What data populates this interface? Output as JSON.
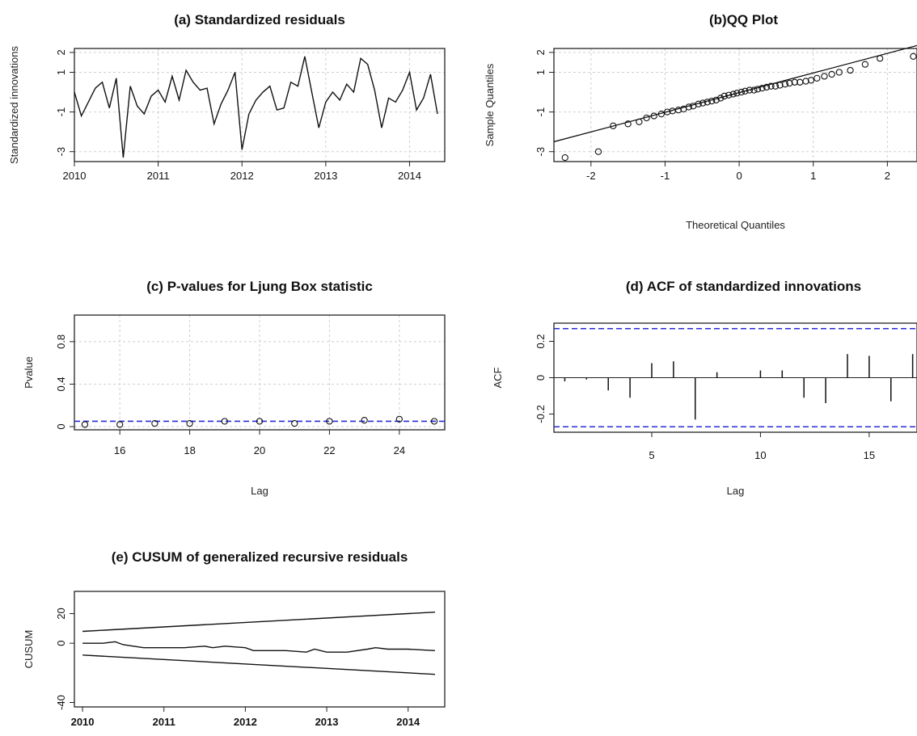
{
  "chart_data": [
    {
      "id": "a",
      "type": "line",
      "title": "(a) Standardized residuals",
      "xlabel": "",
      "ylabel": "Standardized innovations",
      "xlim": [
        2010,
        2014.42
      ],
      "ylim": [
        -3.5,
        2.2
      ],
      "xticks": [
        2010,
        2011,
        2012,
        2013,
        2014
      ],
      "yticks": [
        -3,
        -1,
        1,
        2
      ],
      "grid": true,
      "series": [
        {
          "x": [
            2010.0,
            2010.083,
            2010.167,
            2010.25,
            2010.333,
            2010.417,
            2010.5,
            2010.583,
            2010.667,
            2010.75,
            2010.833,
            2010.917,
            2011.0,
            2011.083,
            2011.167,
            2011.25,
            2011.333,
            2011.417,
            2011.5,
            2011.583,
            2011.667,
            2011.75,
            2011.833,
            2011.917,
            2012.0,
            2012.083,
            2012.167,
            2012.25,
            2012.333,
            2012.417,
            2012.5,
            2012.583,
            2012.667,
            2012.75,
            2012.833,
            2012.917,
            2013.0,
            2013.083,
            2013.167,
            2013.25,
            2013.333,
            2013.417,
            2013.5,
            2013.583,
            2013.667,
            2013.75,
            2013.833,
            2013.917,
            2014.0,
            2014.083,
            2014.167,
            2014.25,
            2014.333
          ],
          "y": [
            0.0,
            -1.2,
            -0.5,
            0.2,
            0.5,
            -0.8,
            0.7,
            -3.3,
            0.3,
            -0.7,
            -1.1,
            -0.2,
            0.1,
            -0.5,
            0.8,
            -0.4,
            1.1,
            0.5,
            0.1,
            0.2,
            -1.6,
            -0.6,
            0.1,
            1.0,
            -2.9,
            -1.1,
            -0.4,
            0.0,
            0.3,
            -0.9,
            -0.8,
            0.5,
            0.3,
            1.8,
            0.0,
            -1.8,
            -0.5,
            0.0,
            -0.4,
            0.4,
            0.0,
            1.7,
            1.4,
            0.1,
            -1.8,
            -0.3,
            -0.5,
            0.1,
            1.0,
            -0.9,
            -0.3,
            0.9,
            -1.1
          ]
        }
      ]
    },
    {
      "id": "b",
      "type": "scatter",
      "title": "(b)QQ Plot",
      "xlabel": "Theoretical Quantiles",
      "ylabel": "Sample Quantiles",
      "xlim": [
        -2.5,
        2.4
      ],
      "ylim": [
        -3.5,
        2.2
      ],
      "xticks": [
        -2,
        -1,
        0,
        1,
        2
      ],
      "yticks": [
        -3,
        -1,
        1,
        2
      ],
      "grid": true,
      "reference_line": {
        "x1": -2.5,
        "y1": -2.5,
        "x2": 2.4,
        "y2": 2.35
      },
      "series": [
        {
          "x": [
            -2.35,
            -1.9,
            -1.7,
            -1.5,
            -1.35,
            -1.25,
            -1.15,
            -1.05,
            -0.97,
            -0.9,
            -0.82,
            -0.75,
            -0.68,
            -0.62,
            -0.55,
            -0.49,
            -0.43,
            -0.37,
            -0.31,
            -0.25,
            -0.2,
            -0.14,
            -0.08,
            -0.03,
            0.03,
            0.08,
            0.14,
            0.2,
            0.25,
            0.31,
            0.37,
            0.43,
            0.49,
            0.55,
            0.62,
            0.68,
            0.75,
            0.82,
            0.9,
            0.97,
            1.05,
            1.15,
            1.25,
            1.35,
            1.5,
            1.7,
            1.9,
            2.35
          ],
          "y": [
            -3.3,
            -3.0,
            -1.7,
            -1.6,
            -1.5,
            -1.3,
            -1.2,
            -1.1,
            -1.0,
            -0.95,
            -0.9,
            -0.85,
            -0.75,
            -0.7,
            -0.6,
            -0.55,
            -0.5,
            -0.45,
            -0.4,
            -0.3,
            -0.2,
            -0.15,
            -0.1,
            -0.05,
            0.0,
            0.05,
            0.1,
            0.1,
            0.15,
            0.2,
            0.25,
            0.3,
            0.3,
            0.35,
            0.4,
            0.45,
            0.5,
            0.5,
            0.55,
            0.6,
            0.7,
            0.8,
            0.9,
            1.0,
            1.1,
            1.4,
            1.7,
            1.8
          ]
        }
      ]
    },
    {
      "id": "c",
      "type": "scatter",
      "title": "(c) P-values for Ljung Box statistic",
      "xlabel": "Lag",
      "ylabel": "Pvalue",
      "xlim": [
        14.7,
        25.3
      ],
      "ylim": [
        -0.03,
        1.05
      ],
      "xticks": [
        16,
        18,
        20,
        22,
        24
      ],
      "yticks": [
        0.0,
        0.4,
        0.8
      ],
      "grid": true,
      "reference_hline": 0.05,
      "series": [
        {
          "x": [
            15,
            16,
            17,
            18,
            19,
            20,
            21,
            22,
            23,
            24,
            25
          ],
          "y": [
            0.02,
            0.02,
            0.03,
            0.03,
            0.05,
            0.05,
            0.03,
            0.05,
            0.06,
            0.07,
            0.05
          ]
        }
      ]
    },
    {
      "id": "d",
      "type": "bar",
      "title": "(d) ACF of standardized innovations",
      "xlabel": "Lag",
      "ylabel": "ACF",
      "xlim": [
        0.5,
        17.2
      ],
      "ylim": [
        -0.3,
        0.3
      ],
      "xticks": [
        5,
        10,
        15
      ],
      "yticks": [
        -0.2,
        0.0,
        0.2
      ],
      "grid": false,
      "confidence_band": [
        -0.27,
        0.27
      ],
      "series": [
        {
          "x": [
            1,
            2,
            3,
            4,
            5,
            6,
            7,
            8,
            9,
            10,
            11,
            12,
            13,
            14,
            15,
            16,
            17
          ],
          "y": [
            -0.02,
            -0.01,
            -0.07,
            -0.11,
            0.08,
            0.09,
            -0.23,
            0.03,
            0.0,
            0.04,
            0.04,
            -0.11,
            -0.14,
            0.13,
            0.12,
            -0.13,
            0.13
          ]
        }
      ]
    },
    {
      "id": "e",
      "type": "line",
      "title": "(e) CUSUM of generalized recursive residuals",
      "xlabel": "",
      "ylabel": "CUSUM",
      "xlim": [
        2009.9,
        2014.45
      ],
      "ylim": [
        -43,
        35
      ],
      "xticks": [
        2010,
        2011,
        2012,
        2013,
        2014
      ],
      "yticks": [
        -40,
        0,
        20
      ],
      "grid": false,
      "series": [
        {
          "x": [
            2010,
            2014.33
          ],
          "y": [
            8,
            21
          ]
        },
        {
          "x": [
            2010,
            2014.33
          ],
          "y": [
            -8,
            -21
          ]
        },
        {
          "x": [
            2010.0,
            2010.25,
            2010.4,
            2010.5,
            2010.75,
            2011.0,
            2011.25,
            2011.5,
            2011.6,
            2011.75,
            2012.0,
            2012.1,
            2012.25,
            2012.5,
            2012.75,
            2012.85,
            2013.0,
            2013.25,
            2013.5,
            2013.6,
            2013.75,
            2014.0,
            2014.33
          ],
          "y": [
            0,
            0,
            1,
            -1,
            -3,
            -3,
            -3,
            -2,
            -3,
            -2,
            -3,
            -5,
            -5,
            -5,
            -6,
            -4,
            -6,
            -6,
            -4,
            -3,
            -4,
            -4,
            -5
          ]
        }
      ]
    }
  ]
}
